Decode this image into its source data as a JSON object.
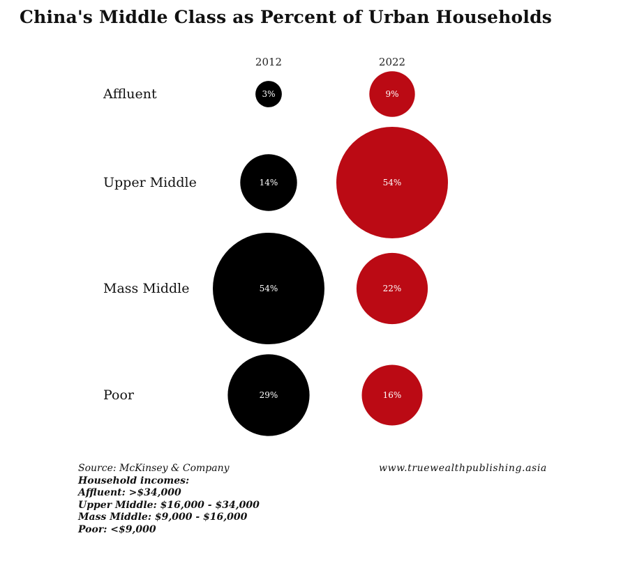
{
  "title": "China's Middle Class as Percent of Urban Households",
  "colors": {
    "series_2012": "#000000",
    "series_2022": "#bb0a14",
    "label_text": "#ffffff"
  },
  "chart_data": {
    "type": "bubble",
    "title": "China's Middle Class as Percent of Urban Households",
    "categories": [
      "Affluent",
      "Upper Middle",
      "Mass Middle",
      "Poor"
    ],
    "series": [
      {
        "name": "2012",
        "values": [
          3,
          14,
          54,
          29
        ]
      },
      {
        "name": "2022",
        "values": [
          9,
          54,
          22,
          16
        ]
      }
    ],
    "value_format": "percent",
    "value_labels": {
      "2012": [
        "3%",
        "14%",
        "54%",
        "29%"
      ],
      "2022": [
        "9%",
        "54%",
        "22%",
        "16%"
      ]
    },
    "grid": false,
    "legend": "none"
  },
  "footer": {
    "source": "Source: McKinsey & Company",
    "incomes_heading": "Household incomes:",
    "incomes": [
      "Affluent: >$34,000",
      "Upper Middle: $16,000 - $34,000",
      "Mass Middle: $9,000 - $16,000",
      "Poor: <$9,000"
    ],
    "website": "www.truewealthpublishing.asia"
  }
}
